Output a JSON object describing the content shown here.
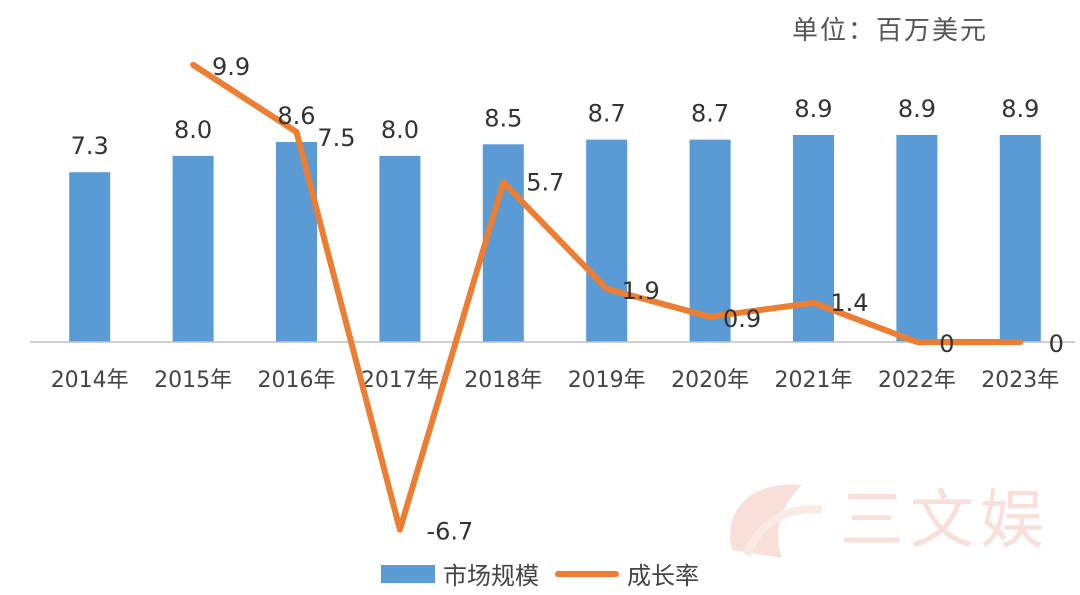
{
  "unit_label": "单位：百万美元",
  "legend": {
    "bar_label": "市场规模",
    "line_label": "成长率"
  },
  "watermark_text": "三文娱",
  "colors": {
    "bar": "#5b9bd5",
    "line": "#ed7d31",
    "axis": "#bfbfbf",
    "text": "#444444"
  },
  "chart_data": {
    "type": "bar",
    "title": "",
    "xlabel": "",
    "ylabel": "",
    "categories": [
      "2014年",
      "2015年",
      "2016年",
      "2017年",
      "2018年",
      "2019年",
      "2020年",
      "2021年",
      "2022年",
      "2023年"
    ],
    "series": [
      {
        "name": "市场规模",
        "type": "bar",
        "values": [
          7.3,
          8.0,
          8.6,
          8.0,
          8.5,
          8.7,
          8.7,
          8.9,
          8.9,
          8.9
        ],
        "labels": [
          "7.3",
          "8.0",
          "8.6",
          "8.0",
          "8.5",
          "8.7",
          "8.7",
          "8.9",
          "8.9",
          "8.9"
        ]
      },
      {
        "name": "成长率",
        "type": "line",
        "values": [
          null,
          9.9,
          7.5,
          -6.7,
          5.7,
          1.9,
          0.9,
          1.4,
          0,
          0
        ],
        "labels": [
          "",
          "9.9",
          "7.5",
          "-6.7",
          "5.7",
          "1.9",
          "0.9",
          "1.4",
          "0",
          "0"
        ]
      }
    ],
    "ylim_bar": [
      0,
      13.5
    ],
    "ylim_line": [
      -7.5,
      11.5
    ],
    "grid": false,
    "legend_position": "bottom"
  }
}
